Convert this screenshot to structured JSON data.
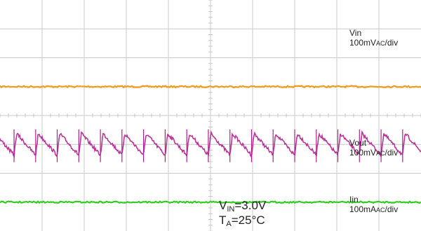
{
  "chart_data": {
    "type": "line",
    "title": "",
    "xlabel": "",
    "ylabel": "",
    "grid": true,
    "grid_divisions": {
      "x": 10,
      "y": 8
    },
    "series": [
      {
        "name": "Vin",
        "scale_value": "100mV",
        "scale_sub": "AC",
        "scale_unit": "/div",
        "color": "#f39a1e",
        "waveform": "flat",
        "level_div": 5.0
      },
      {
        "name": "Vout",
        "scale_value": "100mV",
        "scale_sub": "AC",
        "scale_unit": "/div",
        "color": "#b0208c",
        "waveform": "sawtooth",
        "level_div": 3.0,
        "peak_to_peak_div": 0.75,
        "cycles": 19.5
      },
      {
        "name": "Iin",
        "scale_value": "100mA",
        "scale_sub": "AC",
        "scale_unit": "/div",
        "color": "#33cc22",
        "waveform": "flat",
        "level_div": 1.0
      }
    ],
    "conditions": {
      "vin": {
        "main": "V",
        "sub": "IN",
        "value": "=3.0V"
      },
      "ta": {
        "main": "T",
        "sub": "A",
        "value": "=25°C"
      }
    }
  }
}
